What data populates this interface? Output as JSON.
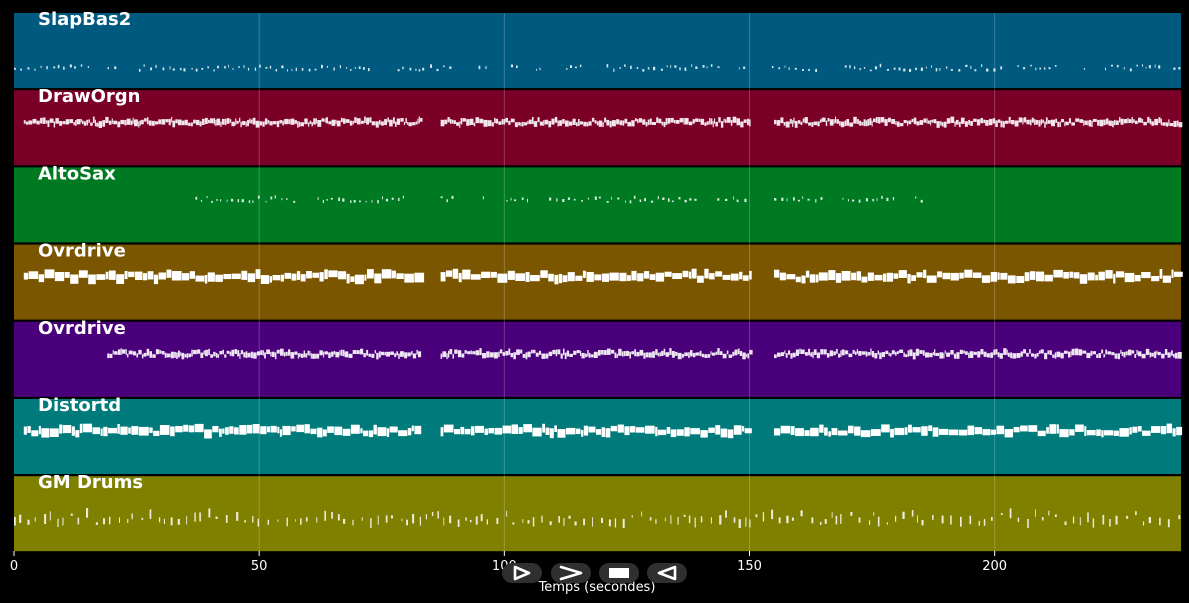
{
  "tracks": [
    {
      "name": "SlapBas2",
      "color": "#005a80",
      "density": "sparse",
      "noteStyle": "thin",
      "segments": [
        [
          0,
          238
        ]
      ]
    },
    {
      "name": "DrawOrgn",
      "color": "#7a0028",
      "density": "dense",
      "noteStyle": "medium",
      "segments": [
        [
          2,
          83
        ],
        [
          87,
          150
        ],
        [
          155,
          238
        ]
      ]
    },
    {
      "name": "AltoSax",
      "color": "#007a22",
      "density": "sparse",
      "noteStyle": "thin",
      "segments": [
        [
          37,
          83
        ],
        [
          87,
          150
        ],
        [
          155,
          186
        ]
      ]
    },
    {
      "name": "Ovrdrive",
      "color": "#7a5600",
      "density": "dense",
      "noteStyle": "thick",
      "segments": [
        [
          2,
          83
        ],
        [
          87,
          150
        ],
        [
          155,
          238
        ]
      ]
    },
    {
      "name": "Ovrdrive",
      "color": "#4a007a",
      "density": "dense",
      "noteStyle": "medium",
      "segments": [
        [
          19,
          83
        ],
        [
          87,
          150
        ],
        [
          155,
          238
        ]
      ]
    },
    {
      "name": "Distortd",
      "color": "#007a7a",
      "density": "dense",
      "noteStyle": "thick",
      "segments": [
        [
          2,
          83
        ],
        [
          87,
          150
        ],
        [
          155,
          238
        ]
      ]
    },
    {
      "name": "GM Drums",
      "color": "#7f7f00",
      "density": "scattered",
      "noteStyle": "thin",
      "segments": [
        [
          0,
          238
        ]
      ]
    }
  ],
  "axis": {
    "xlabel": "Temps (secondes)",
    "xlim": [
      0,
      238
    ],
    "ticks": [
      0,
      50,
      100,
      150,
      200
    ],
    "tick_labels": [
      "0",
      "50",
      "100",
      "150",
      "200"
    ],
    "grid": true
  },
  "controls": [
    {
      "name": "play-button",
      "icon": "play-icon"
    },
    {
      "name": "forward-button",
      "icon": "forward-icon"
    },
    {
      "name": "stop-button",
      "icon": "stop-icon"
    },
    {
      "name": "rewind-button",
      "icon": "rewind-icon"
    }
  ]
}
